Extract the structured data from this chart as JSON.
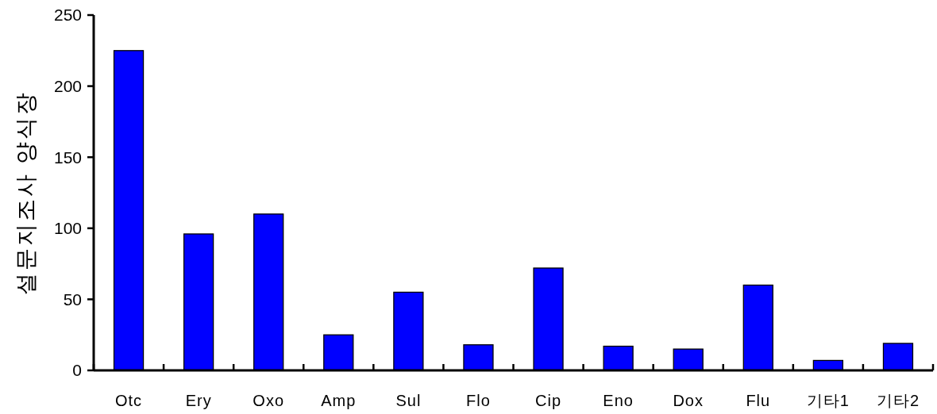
{
  "chart_data": {
    "type": "bar",
    "ylabel": "설문지조사 양식장",
    "categories": [
      "Otc",
      "Ery",
      "Oxo",
      "Amp",
      "Sul",
      "Flo",
      "Cip",
      "Eno",
      "Dox",
      "Flu",
      "기타1",
      "기타2"
    ],
    "values": [
      225,
      96,
      110,
      25,
      55,
      18,
      72,
      17,
      15,
      60,
      7,
      19
    ],
    "color": "#0000ff",
    "ylim": [
      0,
      250
    ],
    "yticks": [
      0,
      50,
      100,
      150,
      200,
      250
    ],
    "grid": false
  }
}
